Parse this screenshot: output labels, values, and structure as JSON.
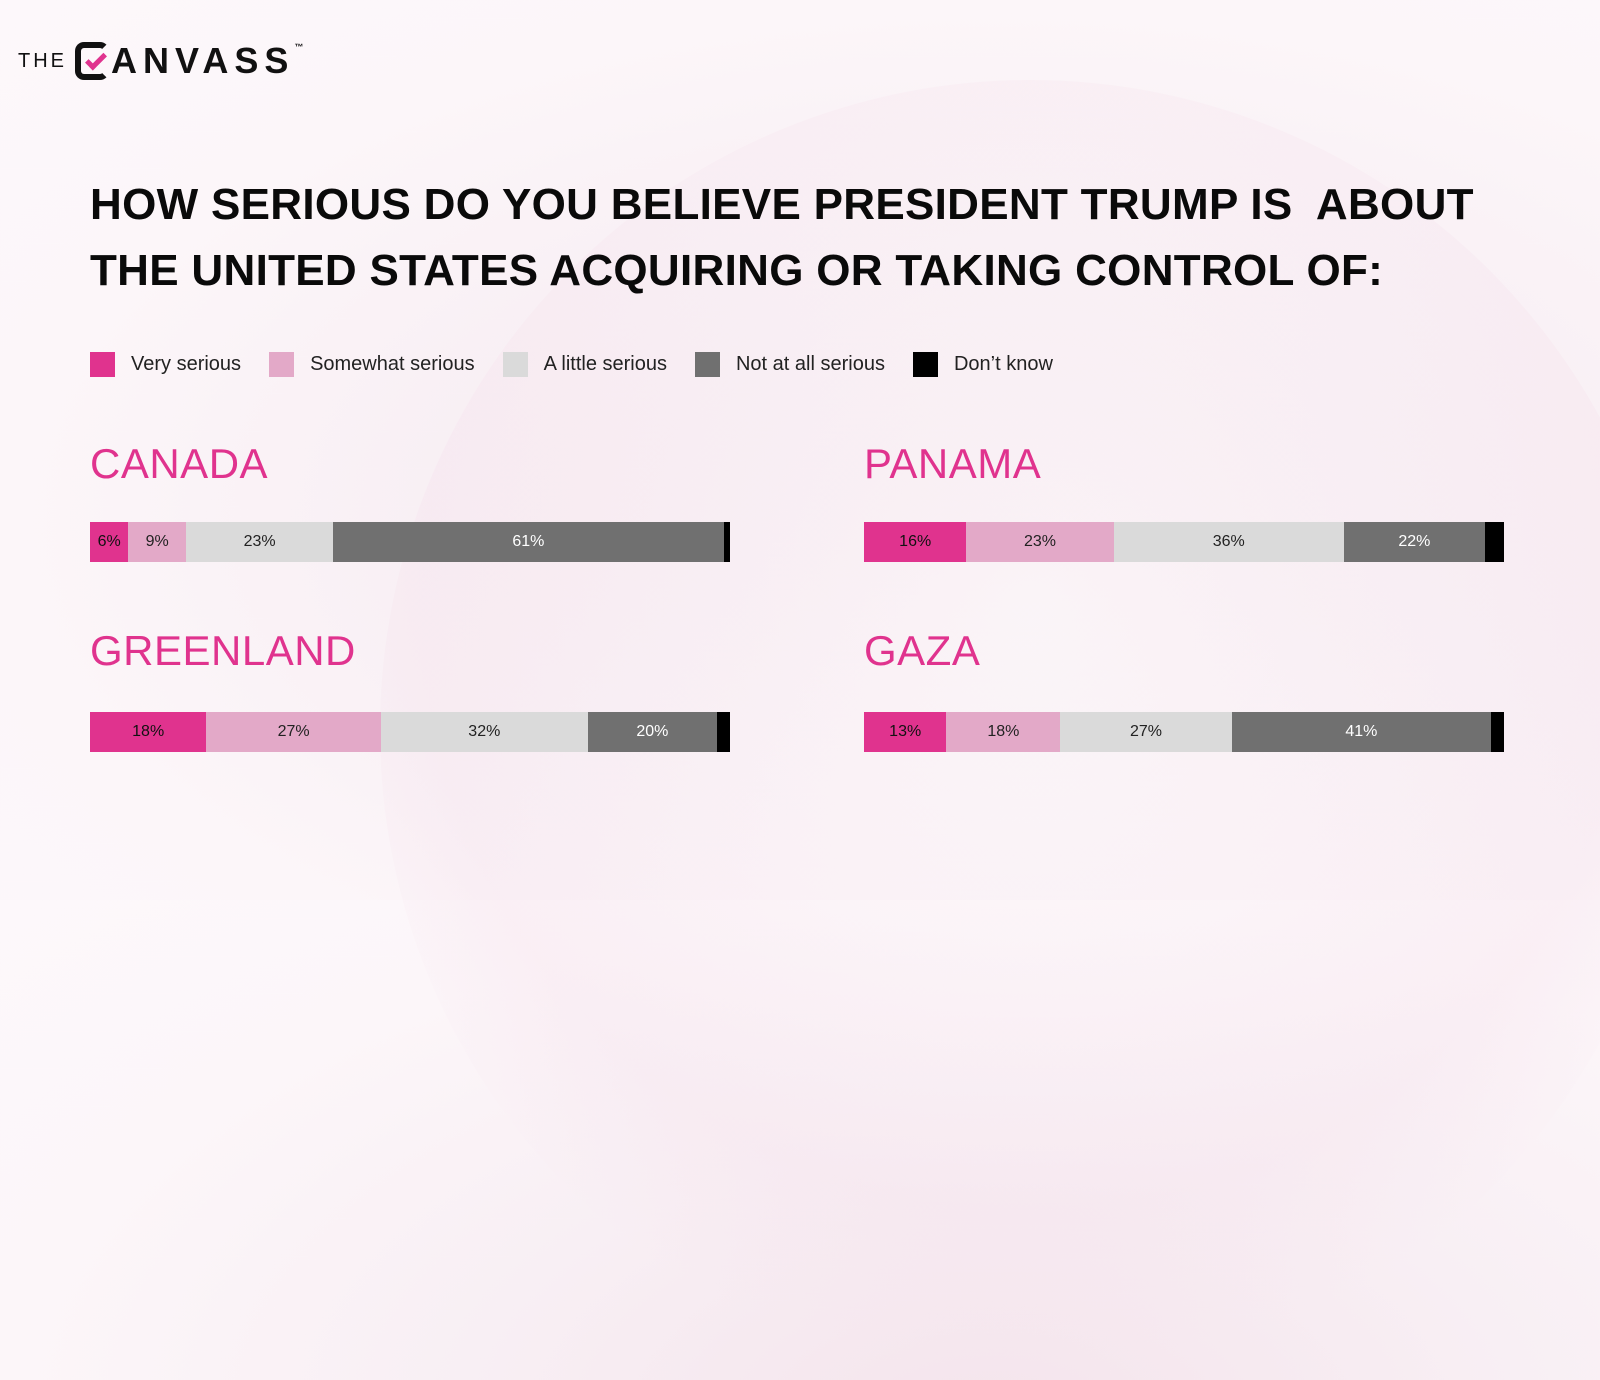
{
  "brand": {
    "prefix": "THE",
    "word": "ANVASS",
    "tm": "™"
  },
  "title_line1": "HOW SERIOUS DO YOU BELIEVE PRESIDENT TRUMP IS  ABOUT",
  "title_line2": "THE UNITED STATES ACQUIRING OR TAKING CONTROL OF:",
  "colors": {
    "very": "#e0338e",
    "somewhat": "#e3a9c8",
    "little": "#dadada",
    "notatall": "#707070",
    "dontknow": "#000000",
    "accent": "#e0338e"
  },
  "chart_data": {
    "type": "bar",
    "stacked": true,
    "orientation": "horizontal",
    "title": "HOW SERIOUS DO YOU BELIEVE PRESIDENT TRUMP IS  ABOUT THE UNITED STATES ACQUIRING OR TAKING CONTROL OF:",
    "legend_position": "top-left",
    "categories": [
      "CANADA",
      "PANAMA",
      "GREENLAND",
      "GAZA"
    ],
    "series": [
      {
        "name": "Very serious",
        "color": "#e0338e",
        "values": [
          6,
          16,
          18,
          13
        ]
      },
      {
        "name": "Somewhat serious",
        "color": "#e3a9c8",
        "values": [
          9,
          23,
          27,
          18
        ]
      },
      {
        "name": "A little serious",
        "color": "#dadada",
        "values": [
          23,
          36,
          32,
          27
        ]
      },
      {
        "name": "Not at all serious",
        "color": "#707070",
        "values": [
          61,
          22,
          20,
          41
        ]
      },
      {
        "name": "Don’t know",
        "color": "#000000",
        "values": [
          1,
          3,
          2,
          2
        ]
      }
    ],
    "data_labels": [
      [
        "6%",
        "9%",
        "23%",
        "61%",
        ""
      ],
      [
        "16%",
        "23%",
        "36%",
        "22%",
        ""
      ],
      [
        "18%",
        "27%",
        "32%",
        "20%",
        ""
      ],
      [
        "13%",
        "18%",
        "27%",
        "41%",
        ""
      ]
    ]
  }
}
